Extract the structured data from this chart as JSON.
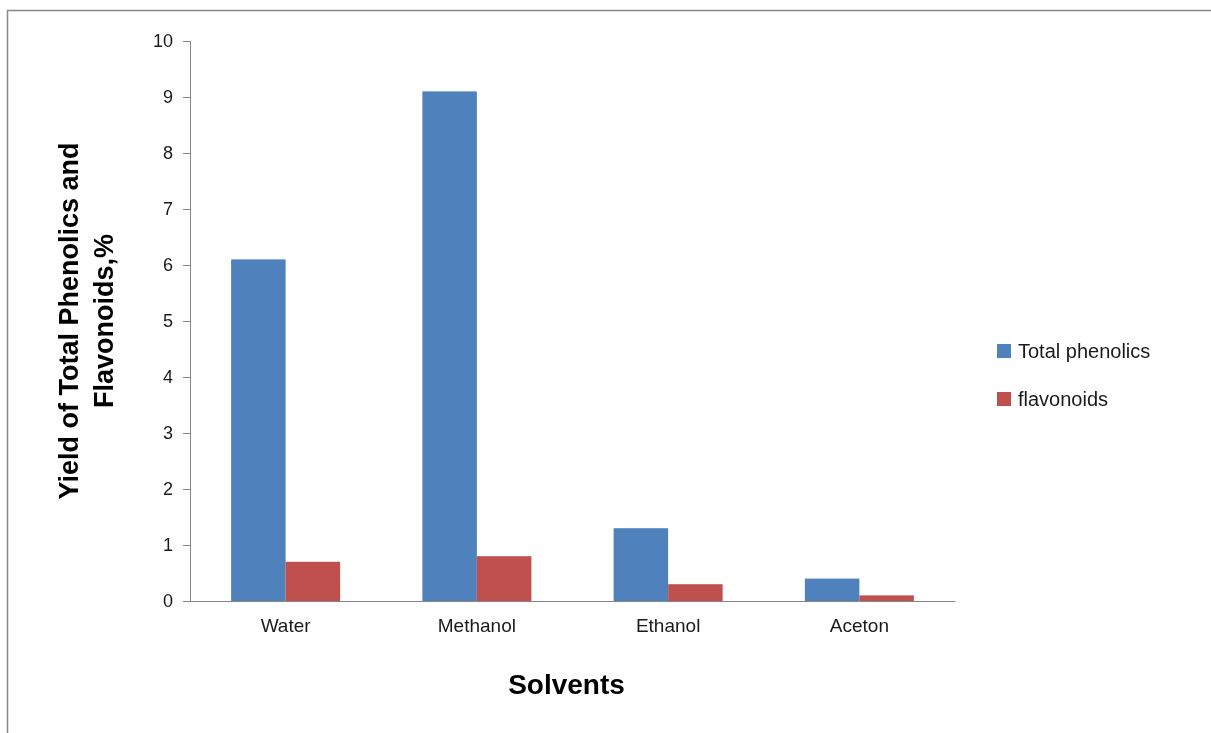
{
  "chart_data": {
    "type": "bar",
    "xlabel": "Solvents",
    "ylabel": "Yield of Total Phenolics and Flavonoids,%",
    "categories": [
      "Water",
      "Methanol",
      "Ethanol",
      "Aceton"
    ],
    "series": [
      {
        "name": "Total phenolics",
        "color": "#4f81bd",
        "values": [
          6.1,
          9.1,
          1.3,
          0.4
        ]
      },
      {
        "name": "flavonoids",
        "color": "#c0504d",
        "values": [
          0.7,
          0.8,
          0.3,
          0.1
        ]
      }
    ],
    "ylim": [
      0,
      10
    ],
    "yticks": [
      0,
      1,
      2,
      3,
      4,
      5,
      6,
      7,
      8,
      9,
      10
    ],
    "grid": false,
    "legend": "right"
  }
}
